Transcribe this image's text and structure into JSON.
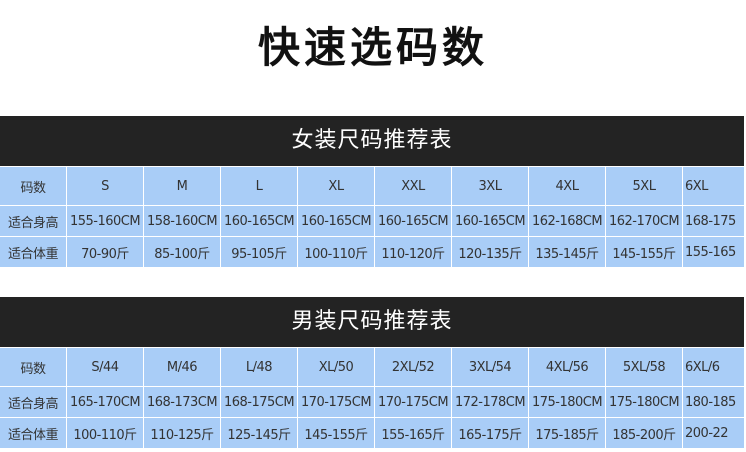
{
  "title": "快速选码数",
  "women": {
    "title": "女装尺码推荐表",
    "rows": [
      [
        "码数",
        "S",
        "M",
        "L",
        "XL",
        "XXL",
        "3XL",
        "4XL",
        "5XL",
        "6XL"
      ],
      [
        "适合身高",
        "155-160CM",
        "158-160CM",
        "160-165CM",
        "160-165CM",
        "160-165CM",
        "160-165CM",
        "162-168CM",
        "162-170CM",
        "168-175"
      ],
      [
        "适合体重",
        "70-90斤",
        "85-100斤",
        "95-105斤",
        "100-110斤",
        "110-120斤",
        "120-135斤",
        "135-145斤",
        "145-155斤",
        "155-165"
      ]
    ]
  },
  "men": {
    "title": "男装尺码推荐表",
    "rows": [
      [
        "码数",
        "S/44",
        "M/46",
        "L/48",
        "XL/50",
        "2XL/52",
        "3XL/54",
        "4XL/56",
        "5XL/58",
        "6XL/6"
      ],
      [
        "适合身高",
        "165-170CM",
        "168-173CM",
        "168-175CM",
        "170-175CM",
        "170-175CM",
        "172-178CM",
        "175-180CM",
        "175-180CM",
        "180-185"
      ],
      [
        "适合体重",
        "100-110斤",
        "110-125斤",
        "125-145斤",
        "145-155斤",
        "155-165斤",
        "165-175斤",
        "175-185斤",
        "185-200斤",
        "200-22"
      ]
    ]
  },
  "colors": {
    "bar": "#232323",
    "cell": "#a9cdf7"
  }
}
